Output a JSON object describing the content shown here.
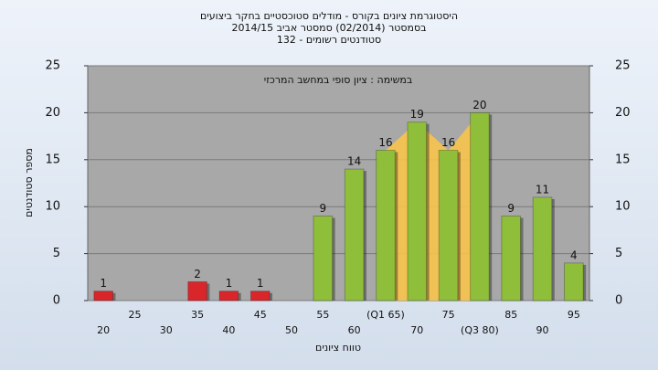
{
  "chart_data": {
    "type": "bar",
    "title": [
      "היסטוגרמת ציונים בקורס - מודלים סטוכסטיים בחקר ביצועים",
      "בסמסטר  (02/2014)  סמסטר אביב 2014/15",
      "סטודנטים רשומים - 132"
    ],
    "subtitle": "במשימה : ציון סופי במחשב המרכזי",
    "x_label": "טווח ציונים",
    "y_label": "מספר סטודנטים",
    "categories": [
      "20",
      "25",
      "30",
      "35",
      "40",
      "45",
      "50",
      "55",
      "60",
      "(Q1 65)",
      "70",
      "75",
      "(Q3 80)",
      "85",
      "90",
      "95"
    ],
    "values": [
      1,
      0,
      0,
      2,
      1,
      1,
      0,
      9,
      14,
      16,
      19,
      16,
      20,
      9,
      11,
      4
    ],
    "colors": [
      "#d9262b",
      "#d9262b",
      "#d9262b",
      "#d9262b",
      "#d9262b",
      "#d9262b",
      "#8fbf3a",
      "#8fbf3a",
      "#8fbf3a",
      "#8fbf3a",
      "#8fbf3a",
      "#8fbf3a",
      "#8fbf3a",
      "#8fbf3a",
      "#8fbf3a",
      "#8fbf3a"
    ],
    "quartile_color": "#f7c34a",
    "quartile_range": [
      9,
      12
    ],
    "ylim": [
      0,
      25
    ],
    "yticks": [
      0,
      5,
      10,
      15,
      20,
      25
    ],
    "y2lim": [
      0,
      25
    ],
    "y2ticks": [
      0,
      5,
      10,
      15,
      20,
      25
    ],
    "grid": true
  }
}
